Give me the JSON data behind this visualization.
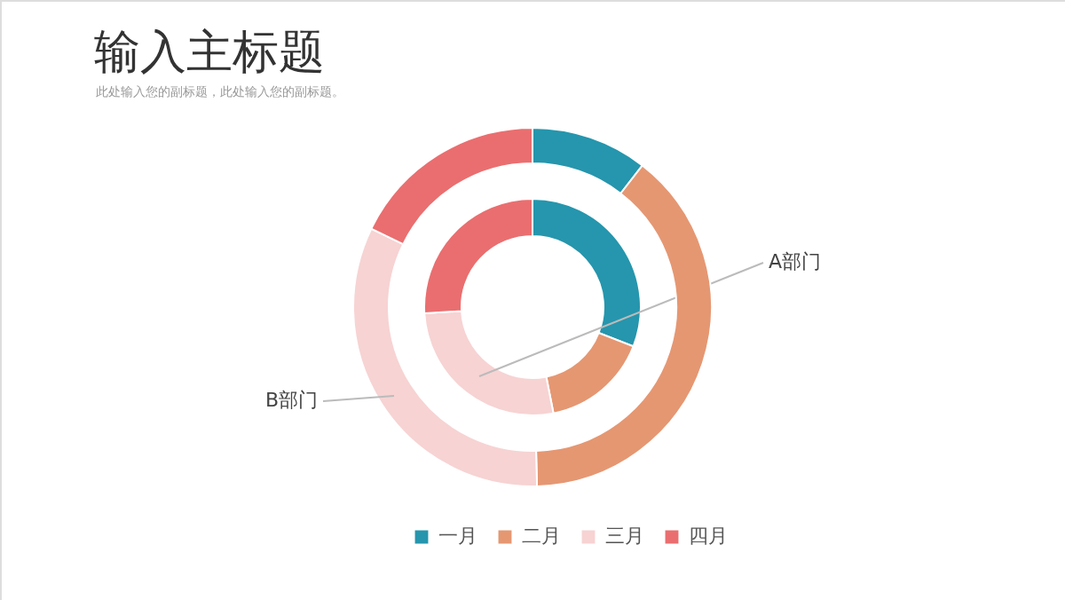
{
  "chart_data": {
    "type": "donut",
    "title": "输入主标题",
    "subtitle": "此处输入您的副标题，此处输入您的副标题。",
    "categories": [
      "一月",
      "二月",
      "三月",
      "四月"
    ],
    "colors": [
      "#2596ad",
      "#e59772",
      "#f7d3d3",
      "#ea6e6f"
    ],
    "series": [
      {
        "name": "A部门",
        "values": [
          30.9,
          16.0,
          27.2,
          25.9
        ]
      },
      {
        "name": "B部门",
        "values": [
          10.5,
          39.1,
          32.6,
          17.8
        ]
      }
    ],
    "legend": "bottom"
  }
}
